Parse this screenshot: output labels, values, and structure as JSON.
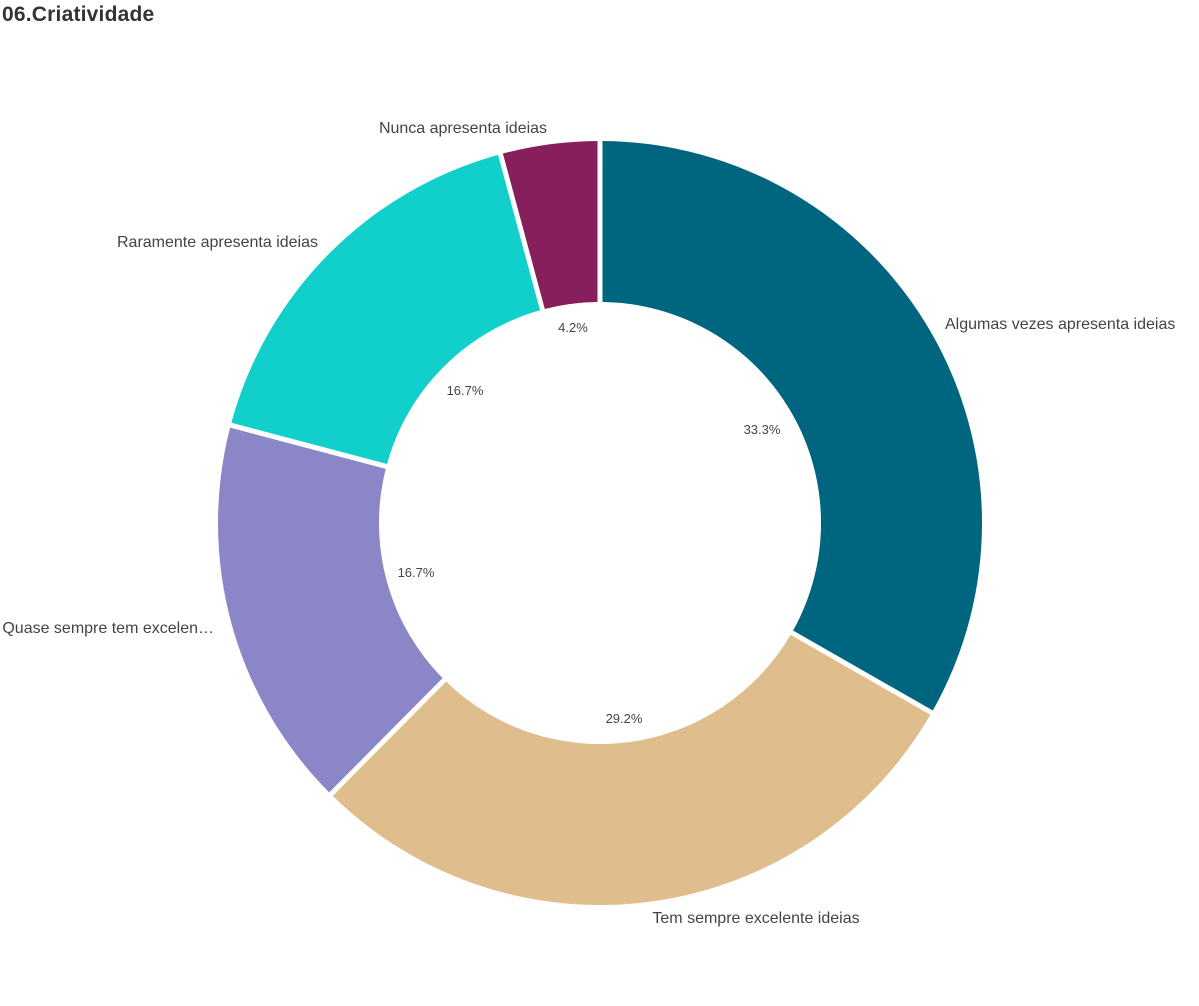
{
  "chart_data": {
    "type": "pie",
    "title": "06.Criatividade",
    "donut": true,
    "slices": [
      {
        "label": "Algumas vezes apresenta ideias",
        "display_label": "Algumas vezes apresenta ideias",
        "value": 33.3,
        "value_label": "33.3%",
        "color": "#00657f"
      },
      {
        "label": "Tem sempre excelente ideias",
        "display_label": "Tem sempre excelente ideias",
        "value": 29.2,
        "value_label": "29.2%",
        "color": "#dfbd8c"
      },
      {
        "label": "Quase sempre tem excelen…",
        "display_label": "Quase sempre tem excelen…",
        "value": 16.7,
        "value_label": "16.7%",
        "color": "#8b86c7"
      },
      {
        "label": "Raramente apresenta ideias",
        "display_label": "Raramente apresenta ideias",
        "value": 16.7,
        "value_label": "16.7%",
        "color": "#11cfca"
      },
      {
        "label": "Nunca apresenta ideias",
        "display_label": "Nunca apresenta ideias",
        "value": 4.2,
        "value_label": "4.2%",
        "color": "#871f5c"
      }
    ]
  }
}
